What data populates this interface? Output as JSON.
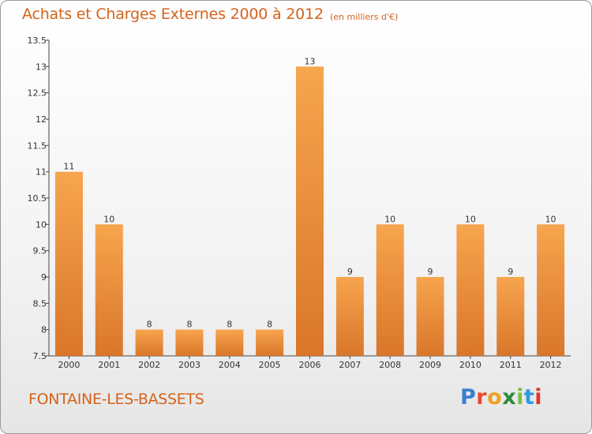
{
  "header": {
    "title": "Achats et Charges Externes 2000 à 2012",
    "unit": "(en milliers d'€)"
  },
  "footer": {
    "commune": "FONTAINE-LES-BASSETS",
    "logo": {
      "p": "P",
      "r": "r",
      "o": "o",
      "x": "x",
      "i1": "i",
      "t": "t",
      "i2": "i"
    }
  },
  "colors": {
    "accent": "#d4631c",
    "bar_light": "#f7a54e",
    "bar_dark": "#d9762a"
  },
  "chart_data": {
    "type": "bar",
    "title": "Achats et Charges Externes 2000 à 2012",
    "categories": [
      "2000",
      "2001",
      "2002",
      "2003",
      "2004",
      "2005",
      "2006",
      "2007",
      "2008",
      "2009",
      "2010",
      "2011",
      "2012"
    ],
    "values": [
      11,
      10,
      8,
      8,
      8,
      8,
      13,
      9,
      10,
      9,
      10,
      9,
      10
    ],
    "labels": [
      "11",
      "10",
      "8",
      "8",
      "8",
      "8",
      "13",
      "9",
      "10",
      "9",
      "10",
      "9",
      "10"
    ],
    "yticks": [
      "7.5",
      "8",
      "8.5",
      "9",
      "9.5",
      "10",
      "10.5",
      "11",
      "11.5",
      "12",
      "12.5",
      "13",
      "13.5"
    ],
    "ylim": [
      7.5,
      13.5
    ],
    "xlabel": "",
    "ylabel": "",
    "grid": false,
    "legend": "none"
  }
}
